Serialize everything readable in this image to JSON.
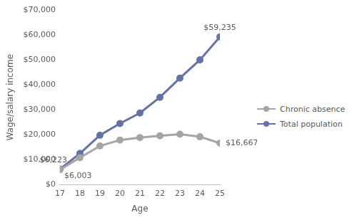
{
  "chart_data": {
    "type": "line",
    "x_label": "Age",
    "y_label": "Wage/salary income",
    "categories": [
      "17",
      "18",
      "19",
      "20",
      "21",
      "22",
      "23",
      "24",
      "25"
    ],
    "series": [
      {
        "name": "Chronic absence",
        "color": "#a5a5a5",
        "marker": "circle",
        "values": [
          6003,
          10800,
          15500,
          17900,
          18900,
          19600,
          20200,
          19200,
          16667
        ]
      },
      {
        "name": "Total population",
        "color": "#6571a9",
        "marker": "circle",
        "values": [
          6223,
          12500,
          19800,
          24500,
          28700,
          35000,
          42700,
          50000,
          59235
        ]
      }
    ],
    "annotations": [
      {
        "series": "Total population",
        "category": "17",
        "text": "$6,223"
      },
      {
        "series": "Chronic absence",
        "category": "17",
        "text": "$6,003"
      },
      {
        "series": "Total population",
        "category": "25",
        "text": "$59,235"
      },
      {
        "series": "Chronic absence",
        "category": "25",
        "text": "$16,667"
      }
    ],
    "ylim": [
      0,
      70000
    ],
    "yticks": [
      {
        "value": 0,
        "label": "$0"
      },
      {
        "value": 10000,
        "label": "$10,000"
      },
      {
        "value": 20000,
        "label": "$20,000"
      },
      {
        "value": 30000,
        "label": "$30,000"
      },
      {
        "value": 40000,
        "label": "$40,000"
      },
      {
        "value": 50000,
        "label": "$50,000"
      },
      {
        "value": 60000,
        "label": "$60,000"
      },
      {
        "value": 70000,
        "label": "$70,000"
      }
    ],
    "grid": false,
    "legend": "right"
  }
}
